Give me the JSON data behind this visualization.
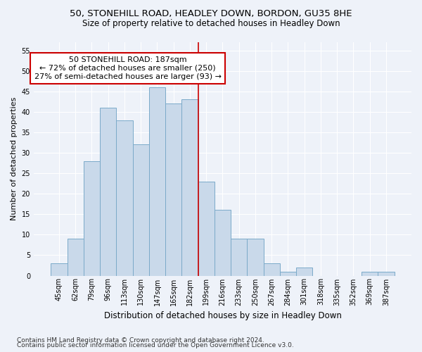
{
  "title1": "50, STONEHILL ROAD, HEADLEY DOWN, BORDON, GU35 8HE",
  "title2": "Size of property relative to detached houses in Headley Down",
  "xlabel": "Distribution of detached houses by size in Headley Down",
  "ylabel": "Number of detached properties",
  "bar_labels": [
    "45sqm",
    "62sqm",
    "79sqm",
    "96sqm",
    "113sqm",
    "130sqm",
    "147sqm",
    "165sqm",
    "182sqm",
    "199sqm",
    "216sqm",
    "233sqm",
    "250sqm",
    "267sqm",
    "284sqm",
    "301sqm",
    "318sqm",
    "335sqm",
    "352sqm",
    "369sqm",
    "387sqm"
  ],
  "bar_heights": [
    3,
    9,
    28,
    41,
    38,
    32,
    46,
    42,
    43,
    23,
    16,
    9,
    9,
    3,
    1,
    2,
    0,
    0,
    0,
    1,
    1
  ],
  "bar_color": "#c9d9ea",
  "bar_edge_color": "#7baac9",
  "vline_x_index": 8.5,
  "annotation_line1": "50 STONEHILL ROAD: 187sqm",
  "annotation_line2": "← 72% of detached houses are smaller (250)",
  "annotation_line3": "27% of semi-detached houses are larger (93) →",
  "annotation_box_color": "#ffffff",
  "annotation_box_edge": "#cc0000",
  "vline_color": "#cc0000",
  "ylim": [
    0,
    57
  ],
  "yticks": [
    0,
    5,
    10,
    15,
    20,
    25,
    30,
    35,
    40,
    45,
    50,
    55
  ],
  "footer1": "Contains HM Land Registry data © Crown copyright and database right 2024.",
  "footer2": "Contains public sector information licensed under the Open Government Licence v3.0.",
  "bg_color": "#eef2f9",
  "grid_color": "#ffffff",
  "title1_fontsize": 9.5,
  "title2_fontsize": 8.5,
  "xlabel_fontsize": 8.5,
  "ylabel_fontsize": 8,
  "tick_fontsize": 7,
  "annotation_fontsize": 8,
  "footer_fontsize": 6.5
}
